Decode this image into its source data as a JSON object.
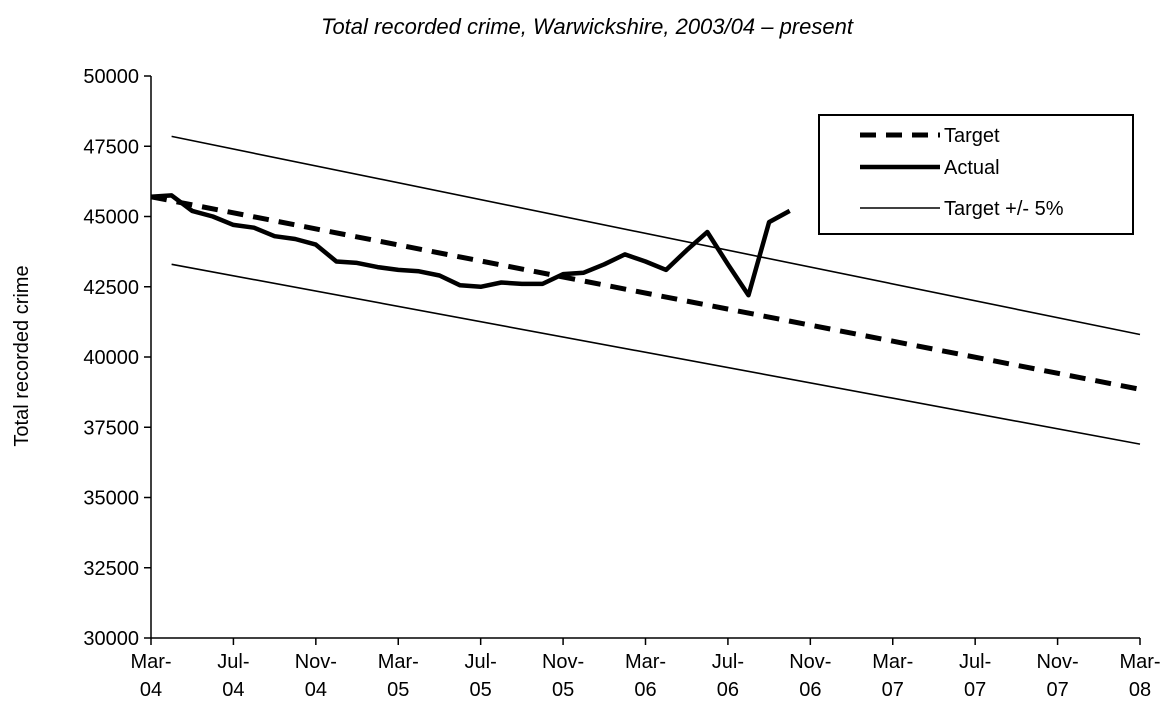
{
  "chart_data": {
    "type": "line",
    "title": "Total recorded crime, Warwickshire, 2003/04 – present",
    "ylabel": "Total recorded crime",
    "xlabel": "",
    "ylim": [
      30000,
      50000
    ],
    "yticks": [
      "30000",
      "32500",
      "35000",
      "37500",
      "40000",
      "42500",
      "45000",
      "47500",
      "50000"
    ],
    "xtick_labels": [
      [
        "Mar-",
        "04"
      ],
      [
        "Jul-",
        "04"
      ],
      [
        "Nov-",
        "04"
      ],
      [
        "Mar-",
        "05"
      ],
      [
        "Jul-",
        "05"
      ],
      [
        "Nov-",
        "05"
      ],
      [
        "Mar-",
        "06"
      ],
      [
        "Jul-",
        "06"
      ],
      [
        "Nov-",
        "06"
      ],
      [
        "Mar-",
        "07"
      ],
      [
        "Jul-",
        "07"
      ],
      [
        "Nov-",
        "07"
      ],
      [
        "Mar-",
        "08"
      ]
    ],
    "x_months": [
      "Mar-04",
      "Apr-04",
      "May-04",
      "Jun-04",
      "Jul-04",
      "Aug-04",
      "Sep-04",
      "Oct-04",
      "Nov-04",
      "Dec-04",
      "Jan-05",
      "Feb-05",
      "Mar-05",
      "Apr-05",
      "May-05",
      "Jun-05",
      "Jul-05",
      "Aug-05",
      "Sep-05",
      "Oct-05",
      "Nov-05",
      "Dec-05",
      "Jan-06",
      "Feb-06",
      "Mar-06",
      "Apr-06",
      "May-06",
      "Jun-06",
      "Jul-06",
      "Aug-06",
      "Sep-06",
      "Oct-06",
      "Nov-06",
      "Dec-06",
      "Jan-07",
      "Feb-07",
      "Mar-07",
      "Apr-07",
      "May-07",
      "Jun-07",
      "Jul-07",
      "Aug-07",
      "Sep-07",
      "Oct-07",
      "Nov-07",
      "Dec-07",
      "Jan-08",
      "Feb-08",
      "Mar-08"
    ],
    "legend_position": "top-right",
    "grid": false,
    "series": [
      {
        "name": "Target",
        "style": "dashed-thick",
        "points": [
          [
            "Mar-04",
            45700
          ],
          [
            "Mar-08",
            38850
          ]
        ]
      },
      {
        "name": "Actual",
        "style": "solid-thick",
        "points": [
          [
            "Mar-04",
            45700
          ],
          [
            "Apr-04",
            45750
          ],
          [
            "May-04",
            45200
          ],
          [
            "Jun-04",
            45000
          ],
          [
            "Jul-04",
            44700
          ],
          [
            "Aug-04",
            44600
          ],
          [
            "Sep-04",
            44300
          ],
          [
            "Oct-04",
            44200
          ],
          [
            "Nov-04",
            44000
          ],
          [
            "Dec-04",
            43400
          ],
          [
            "Jan-05",
            43350
          ],
          [
            "Feb-05",
            43200
          ],
          [
            "Mar-05",
            43100
          ],
          [
            "Apr-05",
            43050
          ],
          [
            "May-05",
            42900
          ],
          [
            "Jun-05",
            42550
          ],
          [
            "Jul-05",
            42500
          ],
          [
            "Aug-05",
            42650
          ],
          [
            "Sep-05",
            42600
          ],
          [
            "Oct-05",
            42600
          ],
          [
            "Nov-05",
            42950
          ],
          [
            "Dec-05",
            43000
          ],
          [
            "Jan-06",
            43300
          ],
          [
            "Feb-06",
            43650
          ],
          [
            "Mar-06",
            43400
          ],
          [
            "Apr-06",
            43100
          ],
          [
            "May-06",
            43800
          ],
          [
            "Jun-06",
            44450
          ],
          [
            "Jul-06",
            43300
          ],
          [
            "Aug-06",
            42200
          ],
          [
            "Sep-06",
            44800
          ],
          [
            "Oct-06",
            45200
          ]
        ]
      },
      {
        "name": "Target +/- 5%",
        "style": "solid-thin",
        "lines": [
          [
            [
              "Apr-04",
              47850
            ],
            [
              "Mar-08",
              40800
            ]
          ],
          [
            [
              "Apr-04",
              43300
            ],
            [
              "Mar-08",
              36900
            ]
          ]
        ]
      }
    ]
  }
}
